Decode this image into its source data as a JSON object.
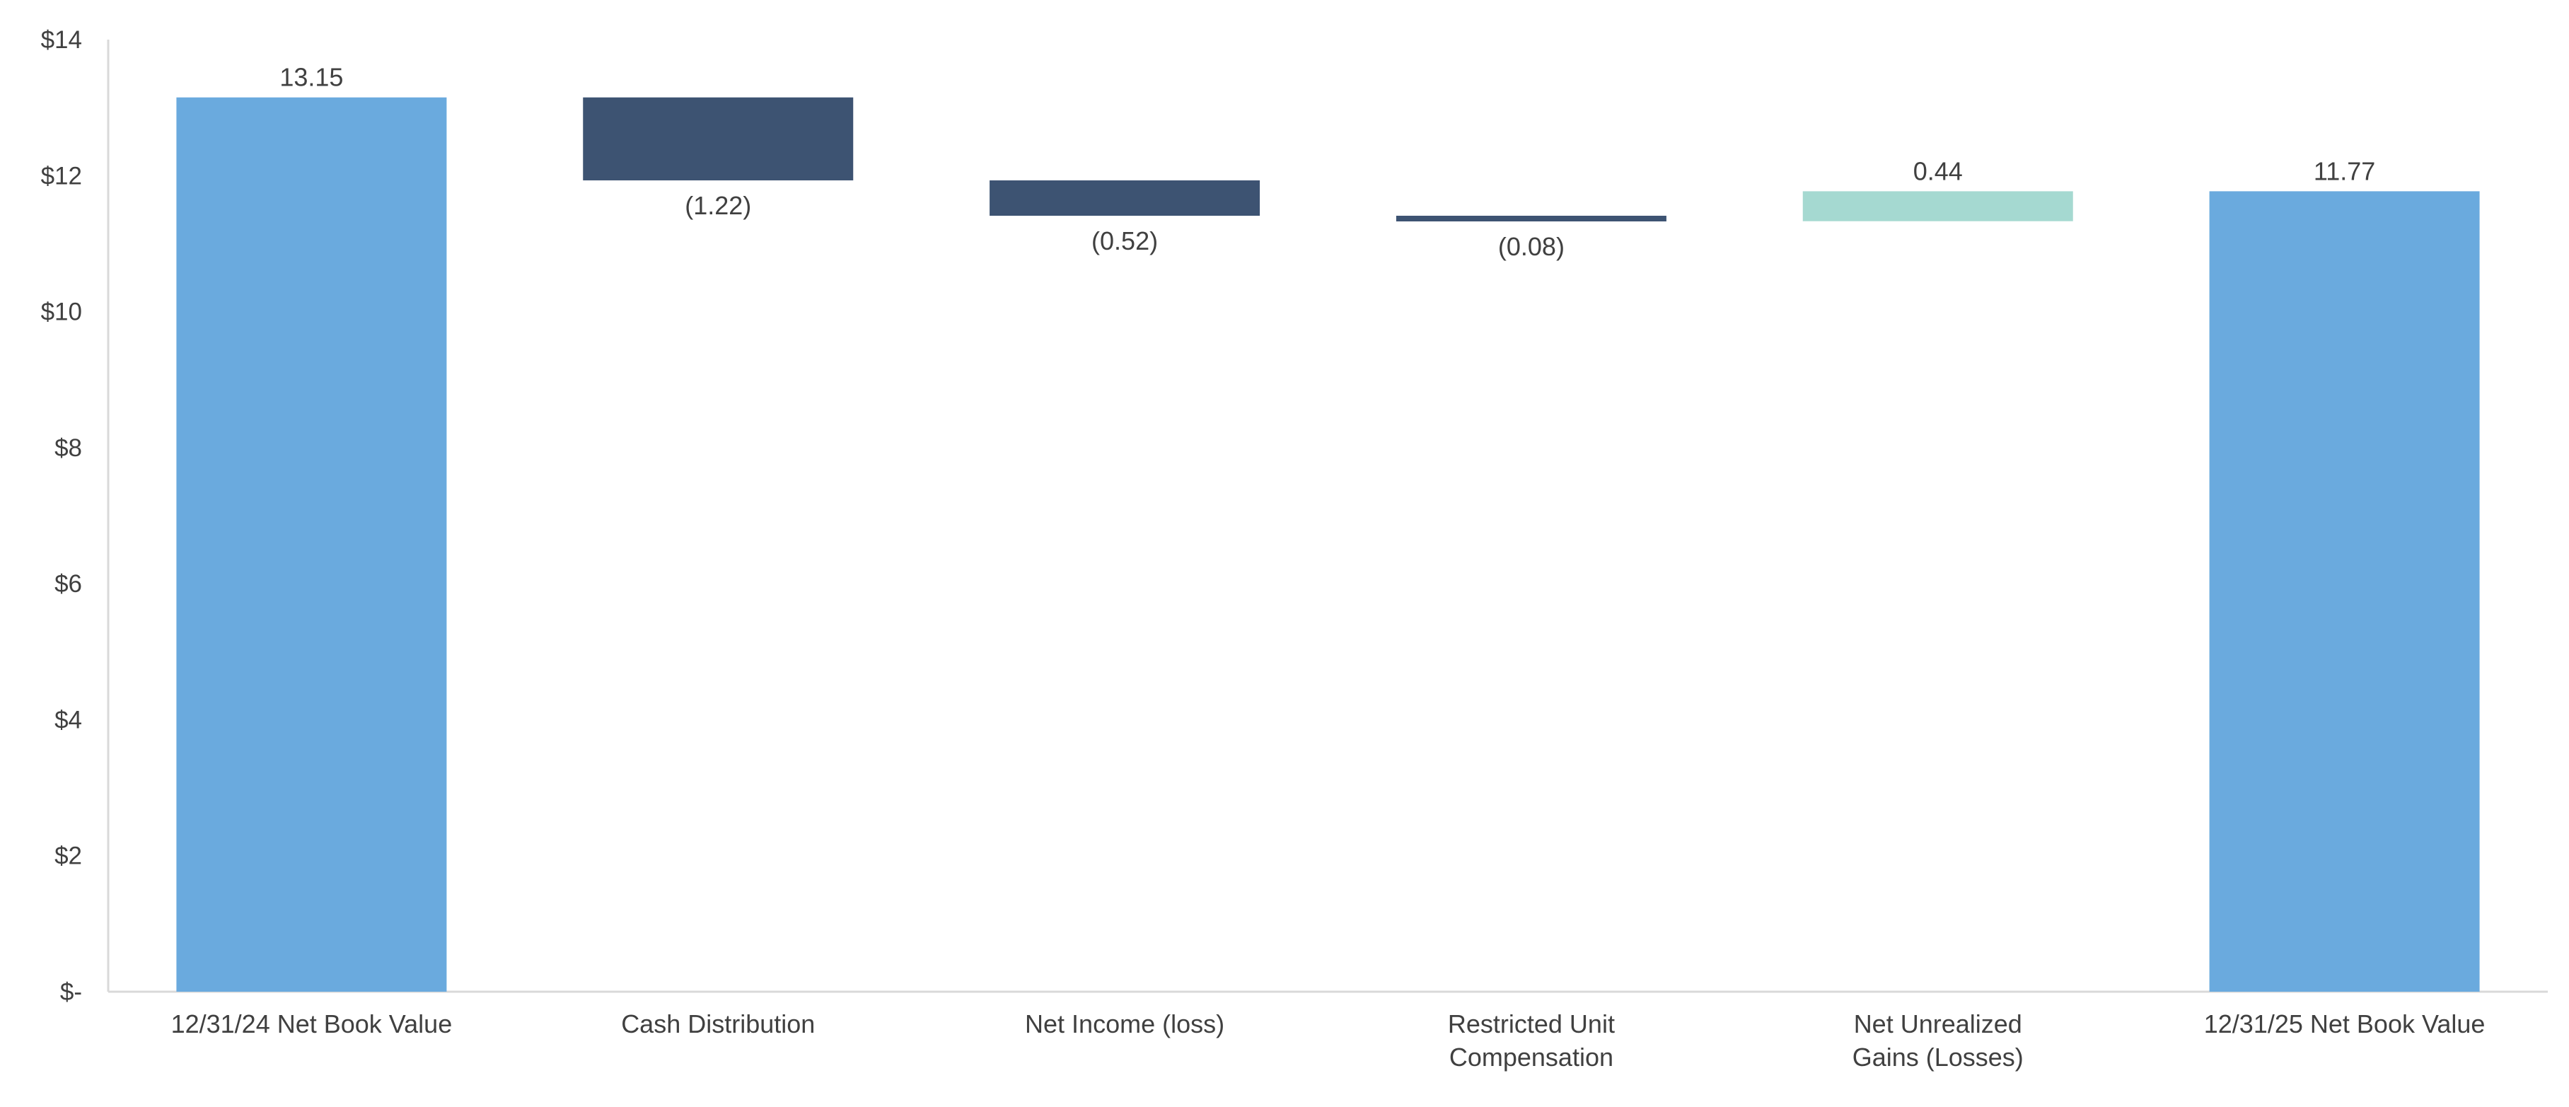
{
  "chart_data": {
    "type": "bar",
    "subtype": "waterfall",
    "title": "",
    "xlabel": "",
    "ylabel": "",
    "ylim": [
      0,
      14
    ],
    "yticks": [
      0,
      2,
      4,
      6,
      8,
      10,
      12,
      14
    ],
    "ytick_labels": [
      "$-",
      "$2",
      "$4",
      "$6",
      "$8",
      "$10",
      "$12",
      "$14"
    ],
    "grid": false,
    "legend": "none",
    "categories": [
      [
        "12/31/24 Net Book Value"
      ],
      [
        "Cash Distribution"
      ],
      [
        "Net Income (loss)"
      ],
      [
        "Restricted Unit",
        "Compensation"
      ],
      [
        "Net Unrealized",
        "Gains (Losses)"
      ],
      [
        "12/31/25 Net Book Value"
      ]
    ],
    "bars": [
      {
        "kind": "total",
        "start": 0,
        "end": 13.15,
        "label": "13.15"
      },
      {
        "kind": "decrease",
        "start": 13.15,
        "end": 11.93,
        "label": "(1.22)"
      },
      {
        "kind": "decrease",
        "start": 11.93,
        "end": 11.41,
        "label": "(0.52)"
      },
      {
        "kind": "decrease",
        "start": 11.41,
        "end": 11.33,
        "label": "(0.08)"
      },
      {
        "kind": "increase",
        "start": 11.33,
        "end": 11.77,
        "label": "0.44"
      },
      {
        "kind": "total",
        "start": 0,
        "end": 11.77,
        "label": "11.77"
      }
    ],
    "colors": {
      "total": "#6aaade",
      "decrease": "#3d5372",
      "increase": "#a5d9d1",
      "axis": "#d9d9d9",
      "text": "#404040"
    }
  }
}
